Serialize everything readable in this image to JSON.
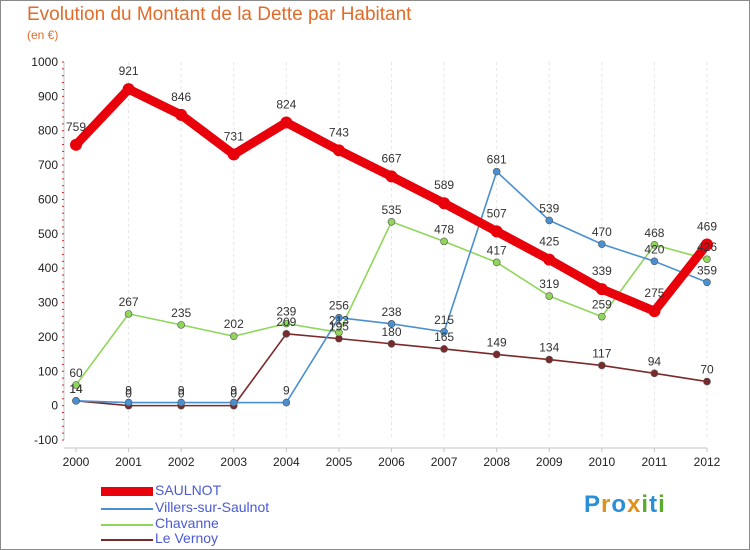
{
  "title": "Evolution du Montant de la Dette par Habitant",
  "subtitle": "(en €)",
  "logo": {
    "letters": [
      "P",
      "r",
      "o",
      "x",
      "i",
      "t",
      "i"
    ],
    "colors": [
      "#2a8fd6",
      "#e0911b",
      "#2a8fd6",
      "#e0911b",
      "#5aab2e",
      "#2a8fd6",
      "#5aab2e"
    ]
  },
  "chart_data": {
    "type": "line",
    "x": [
      "2000",
      "2001",
      "2002",
      "2003",
      "2004",
      "2005",
      "2006",
      "2007",
      "2008",
      "2009",
      "2010",
      "2011",
      "2012"
    ],
    "ylim": [
      -100,
      1000
    ],
    "yticks": [
      "-100",
      "0",
      "100",
      "200",
      "300",
      "400",
      "500",
      "600",
      "700",
      "800",
      "900",
      "1000"
    ],
    "grid": "vertical dashed",
    "legend": "bottom-left",
    "series": [
      {
        "name": "SAULNOT",
        "color": "#e8000b",
        "values": [
          759,
          921,
          846,
          731,
          824,
          743,
          667,
          589,
          507,
          425,
          339,
          275,
          469
        ]
      },
      {
        "name": "Villers-sur-Saulnot",
        "color": "#4a8fd0",
        "values": [
          14,
          9,
          9,
          9,
          9,
          256,
          238,
          215,
          681,
          539,
          470,
          420,
          359
        ]
      },
      {
        "name": "Chavanne",
        "color": "#8fd65a",
        "values": [
          60,
          267,
          235,
          202,
          239,
          213,
          535,
          478,
          417,
          319,
          259,
          468,
          426
        ]
      },
      {
        "name": "Le Vernoy",
        "color": "#7a2a2a",
        "values": [
          14,
          0,
          0,
          0,
          209,
          195,
          180,
          165,
          149,
          134,
          117,
          94,
          70
        ]
      }
    ]
  }
}
